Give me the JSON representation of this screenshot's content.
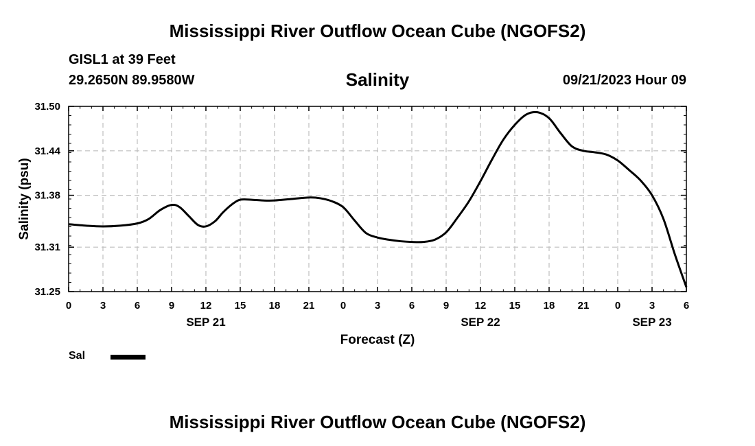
{
  "header": {
    "title": "Mississippi River Outflow Ocean Cube (NGOFS2)",
    "station": "GISL1 at 39 Feet",
    "coords": "29.2650N  89.9580W",
    "run_time": "09/21/2023 Hour 09"
  },
  "footer": {
    "title": "Mississippi River Outflow Ocean Cube (NGOFS2)"
  },
  "legend": {
    "label": "Sal",
    "color": "#000000"
  },
  "chart_data": {
    "type": "line",
    "title": "Salinity",
    "xlabel": "Forecast (Z)",
    "ylabel": "Salinity (psu)",
    "ylim": [
      31.25,
      31.5
    ],
    "yticks": [
      "31.25",
      "31.31",
      "31.38",
      "31.44",
      "31.50"
    ],
    "ytick_values": [
      31.25,
      31.31,
      31.38,
      31.44,
      31.5
    ],
    "xlim": [
      0,
      54
    ],
    "xtick_labels": [
      "0",
      "3",
      "6",
      "9",
      "12",
      "15",
      "18",
      "21",
      "0",
      "3",
      "6",
      "9",
      "12",
      "15",
      "18",
      "21",
      "0",
      "3",
      "6"
    ],
    "date_labels": [
      {
        "label": "SEP 21",
        "x": 12
      },
      {
        "label": "SEP 22",
        "x": 36
      },
      {
        "label": "SEP 23",
        "x": 51
      }
    ],
    "grid": true,
    "series": [
      {
        "name": "Sal",
        "color": "#000000",
        "x": [
          0,
          1.5,
          3,
          4.5,
          6,
          7,
          8,
          9,
          9.7,
          10.5,
          11.3,
          12,
          12.8,
          13.5,
          14.3,
          15,
          16,
          17,
          18,
          19.5,
          21,
          22,
          23,
          24,
          25,
          26,
          27,
          28,
          29,
          30,
          31,
          32,
          33,
          34,
          35,
          36,
          37,
          38,
          39,
          40,
          41,
          42,
          43,
          44,
          45,
          46,
          47,
          48,
          49,
          50,
          51,
          52,
          53,
          54
        ],
        "y": [
          31.341,
          31.339,
          31.338,
          31.339,
          31.342,
          31.348,
          31.36,
          31.367,
          31.364,
          31.352,
          31.34,
          31.338,
          31.345,
          31.357,
          31.368,
          31.374,
          31.374,
          31.373,
          31.373,
          31.375,
          31.377,
          31.376,
          31.372,
          31.364,
          31.346,
          31.329,
          31.323,
          31.32,
          31.318,
          31.317,
          31.317,
          31.32,
          31.33,
          31.35,
          31.372,
          31.399,
          31.428,
          31.455,
          31.475,
          31.489,
          31.492,
          31.484,
          31.464,
          31.446,
          31.44,
          31.438,
          31.435,
          31.427,
          31.414,
          31.4,
          31.38,
          31.348,
          31.3,
          31.256
        ]
      }
    ]
  }
}
